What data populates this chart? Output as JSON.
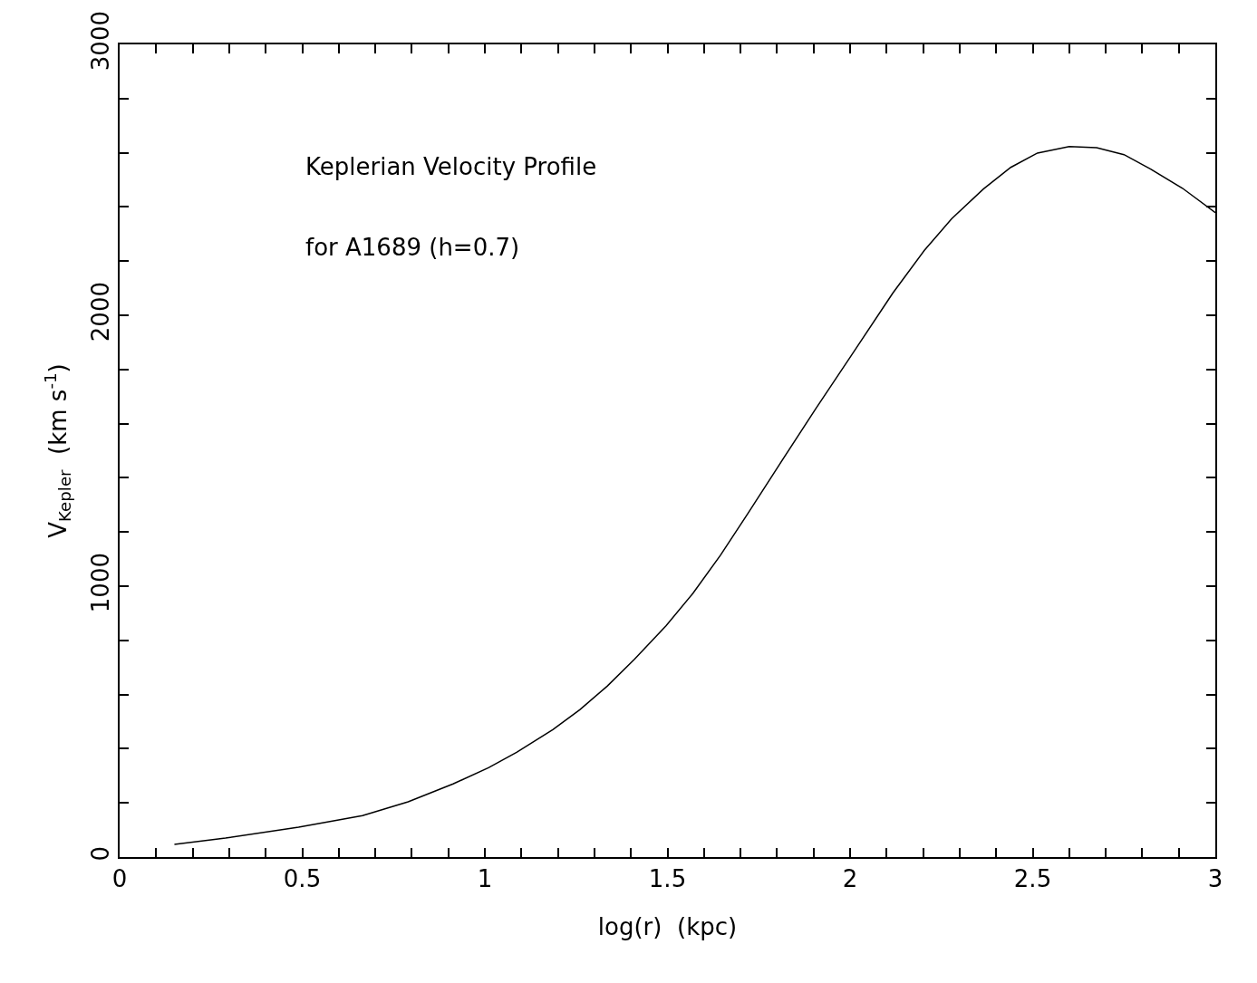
{
  "chart_data": {
    "type": "line",
    "xlabel": "log(r)  (kpc)",
    "ylabel": "V$_{Kepler}$  (km s$^{-1}$)",
    "annotations": [
      "Keplerian Velocity Profile",
      "for A1689 (h=0.7)"
    ],
    "x": [
      0.15,
      0.29,
      0.49,
      0.665,
      0.79,
      0.913,
      1.01,
      1.087,
      1.186,
      1.26,
      1.335,
      1.41,
      1.496,
      1.57,
      1.645,
      1.72,
      1.806,
      1.906,
      2.005,
      2.117,
      2.203,
      2.278,
      2.365,
      2.44,
      2.513,
      2.6,
      2.675,
      2.75,
      2.824,
      2.91,
      3.0
    ],
    "series": [
      {
        "color": "#000000",
        "values": [
          47,
          70,
          110,
          153,
          204,
          270,
          330,
          387,
          470,
          544,
          631,
          731,
          854,
          974,
          1114,
          1268,
          1448,
          1655,
          1855,
          2082,
          2239,
          2356,
          2466,
          2546,
          2599,
          2623,
          2619,
          2593,
          2539,
          2469,
          2379
        ]
      }
    ],
    "xlim": [
      0,
      3
    ],
    "ylim": [
      0,
      3000
    ],
    "xticks": [
      0,
      {
        "value": 0.1,
        "label": null
      },
      {
        "value": 0.2,
        "label": null
      },
      {
        "value": 0.3,
        "label": null
      },
      {
        "value": 0.4,
        "label": null
      },
      0.5,
      {
        "value": 0.6,
        "label": null
      },
      {
        "value": 0.7,
        "label": null
      },
      {
        "value": 0.8,
        "label": null
      },
      {
        "value": 0.9,
        "label": null
      },
      1,
      {
        "value": 1.1,
        "label": null
      },
      {
        "value": 1.2,
        "label": null
      },
      {
        "value": 1.3,
        "label": null
      },
      {
        "value": 1.4,
        "label": null
      },
      1.5,
      {
        "value": 1.6,
        "label": null
      },
      {
        "value": 1.7,
        "label": null
      },
      {
        "value": 1.8,
        "label": null
      },
      {
        "value": 1.9,
        "label": null
      },
      2,
      {
        "value": 2.1,
        "label": null
      },
      {
        "value": 2.2,
        "label": null
      },
      {
        "value": 2.3,
        "label": null
      },
      {
        "value": 2.4,
        "label": null
      },
      2.5,
      {
        "value": 2.6,
        "label": null
      },
      {
        "value": 2.7,
        "label": null
      },
      {
        "value": 2.8,
        "label": null
      },
      {
        "value": 2.9,
        "label": null
      },
      3
    ],
    "yticks": [
      0,
      {
        "value": 200,
        "label": null
      },
      {
        "value": 400,
        "label": null
      },
      {
        "value": 600,
        "label": null
      },
      {
        "value": 800,
        "label": null
      },
      1000,
      {
        "value": 1200,
        "label": null
      },
      {
        "value": 1400,
        "label": null
      },
      {
        "value": 1600,
        "label": null
      },
      {
        "value": 1800,
        "label": null
      },
      2000,
      {
        "value": 2200,
        "label": null
      },
      {
        "value": 2400,
        "label": null
      },
      {
        "value": 2600,
        "label": null
      },
      {
        "value": 2800,
        "label": null
      },
      3000
    ],
    "marker": "none",
    "line_style": "solid"
  }
}
